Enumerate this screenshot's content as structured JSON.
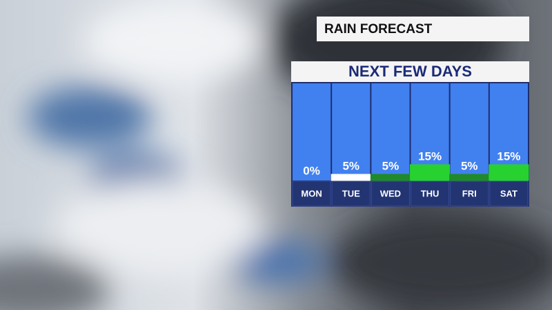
{
  "chart_data": {
    "type": "bar",
    "title": "RAIN FORECAST",
    "subtitle": "NEXT FEW DAYS",
    "categories": [
      "MON",
      "TUE",
      "WED",
      "THU",
      "FRI",
      "SAT"
    ],
    "values": [
      0,
      5,
      5,
      15,
      5,
      15
    ],
    "value_labels": [
      "0%",
      "5%",
      "5%",
      "15%",
      "5%",
      "15%"
    ],
    "colors": [
      "#ffffff",
      "#ffffff",
      "#1f8a2a",
      "#27d12f",
      "#1f8a2a",
      "#27d12f"
    ],
    "ylim": [
      0,
      100
    ]
  }
}
